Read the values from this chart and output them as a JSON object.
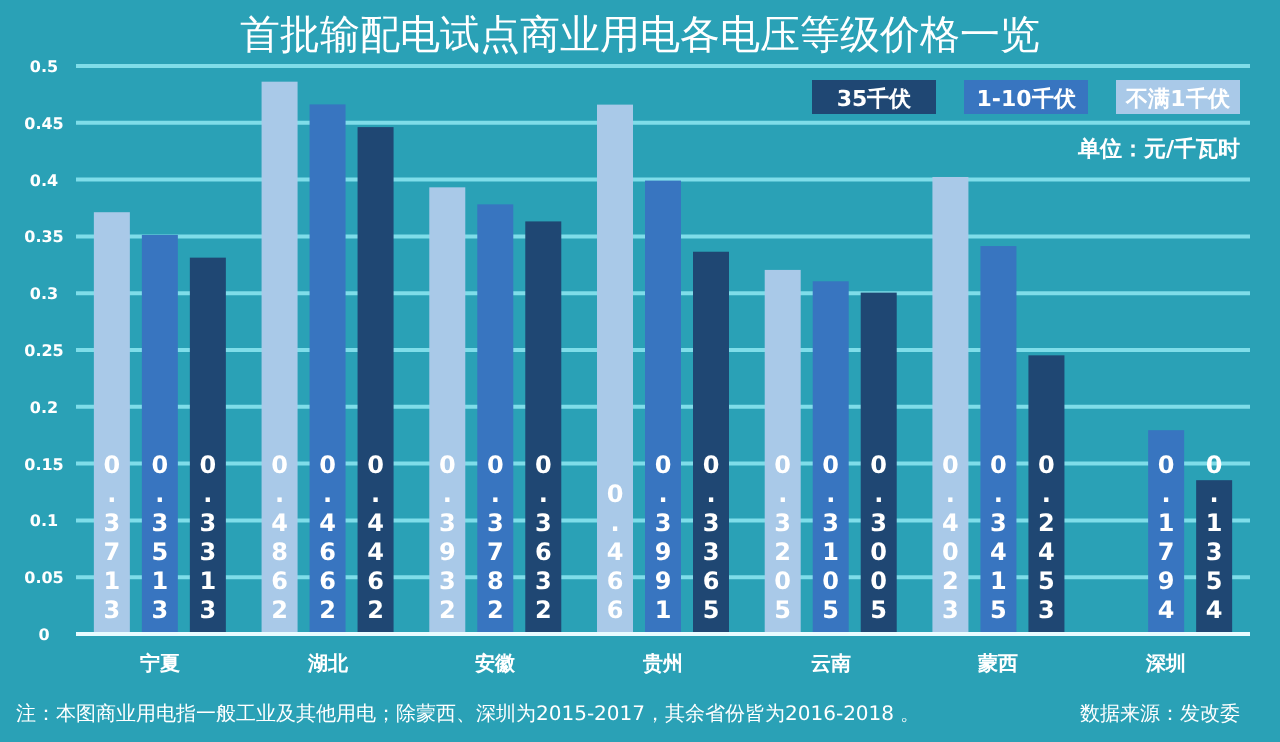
{
  "chart_data": {
    "type": "bar",
    "title": "首批输配电试点商业用电各电压等级价格一览",
    "categories": [
      "宁夏",
      "湖北",
      "安徽",
      "贵州",
      "云南",
      "蒙西",
      "深圳"
    ],
    "series": [
      {
        "name": "不满1千伏",
        "color": "#a9c9e8",
        "values": [
          0.3713,
          0.4862,
          0.3932,
          0.466,
          0.3205,
          0.4023,
          null
        ]
      },
      {
        "name": "1-10千伏",
        "color": "#3875c0",
        "values": [
          0.3513,
          0.4662,
          0.3782,
          0.3991,
          0.3105,
          0.3415,
          0.1794
        ]
      },
      {
        "name": "35千伏",
        "color": "#1f4773",
        "values": [
          0.3313,
          0.4462,
          0.3632,
          0.3365,
          0.3005,
          0.2453,
          0.1354
        ]
      }
    ],
    "ylim": [
      0,
      0.5
    ],
    "yticks": [
      0,
      0.05,
      0.1,
      0.15,
      0.2,
      0.25,
      0.3,
      0.35,
      0.4,
      0.45,
      0.5
    ],
    "grid": "y",
    "legend": "top right",
    "data_labels": true,
    "annotations": [
      "单位：元/千瓦时",
      "注：本图商业用电指一般工业及其他用电；除蒙西、深圳为2015-2017，其余省份皆为2016-2018 。",
      "数据来源：发改委"
    ]
  }
}
